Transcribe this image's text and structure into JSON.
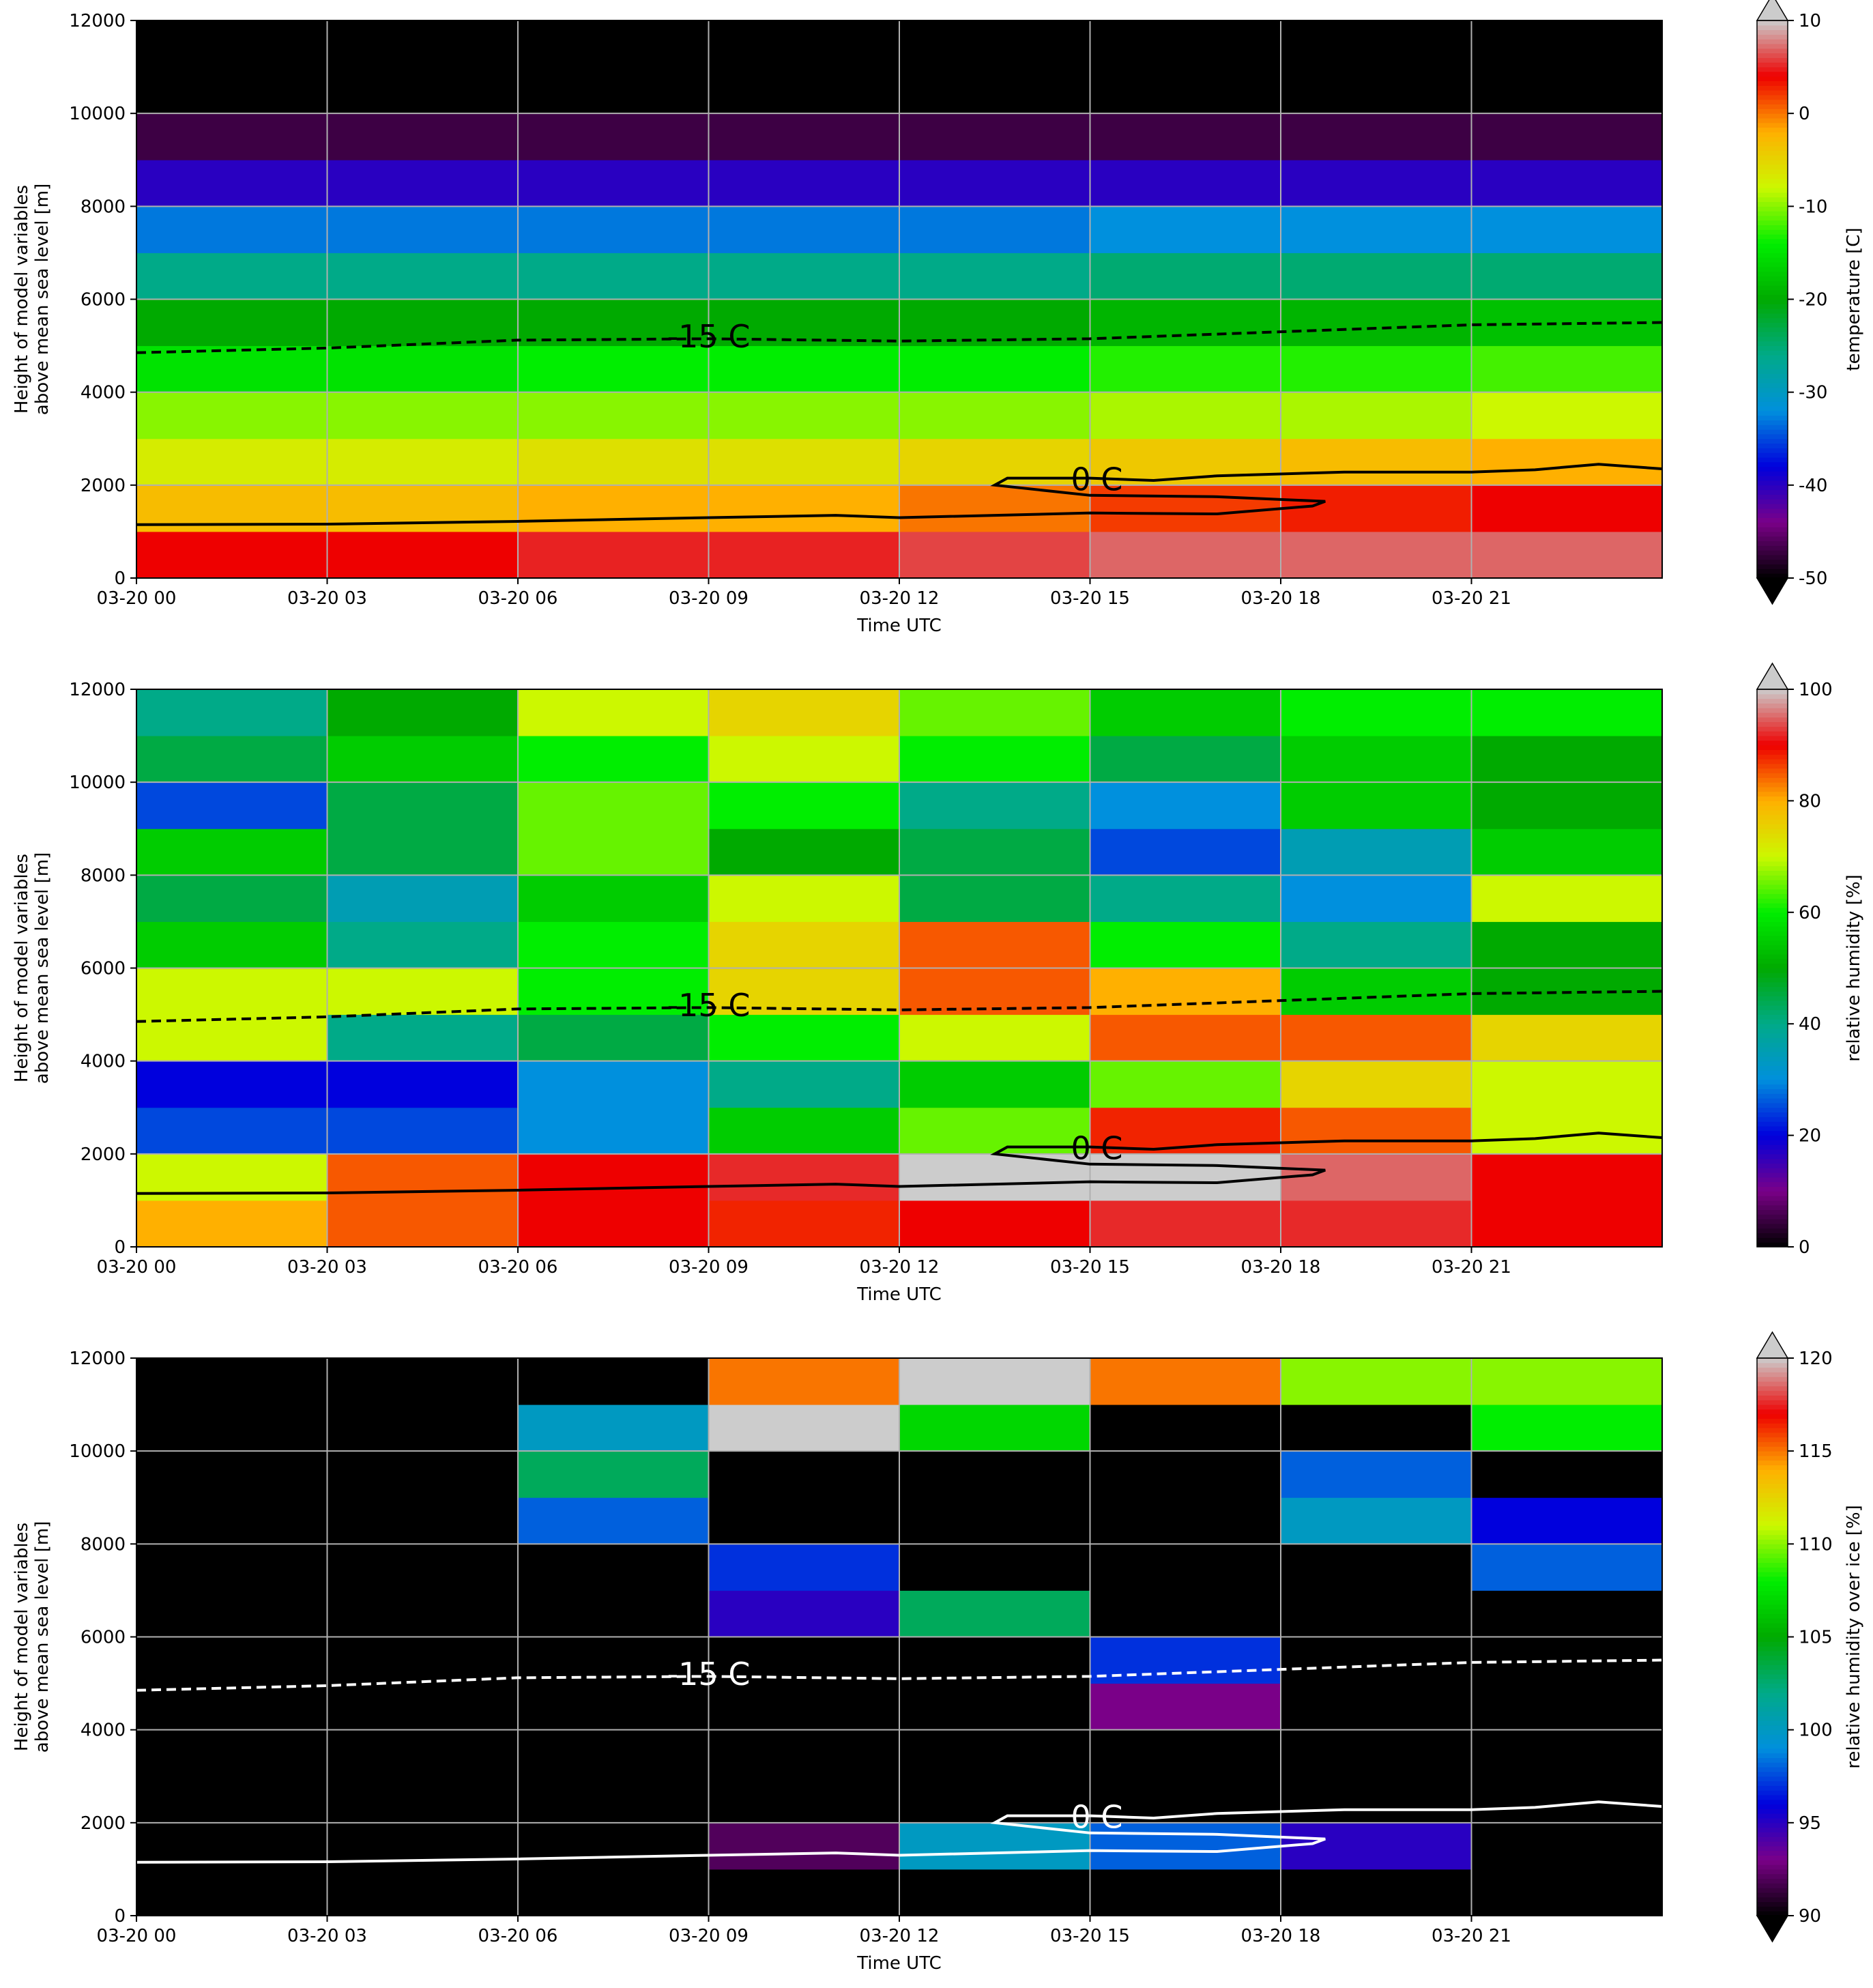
{
  "chart_data": [
    {
      "type": "heatmap",
      "xlabel": "Time UTC",
      "ylabel": [
        "Height of model variables",
        "above mean sea level [m]"
      ],
      "xlim": [
        0,
        24
      ],
      "ylim": [
        0,
        12000
      ],
      "xticks": [
        {
          "value": 0,
          "label": "03-20 00"
        },
        {
          "value": 3,
          "label": "03-20 03"
        },
        {
          "value": 6,
          "label": "03-20 06"
        },
        {
          "value": 9,
          "label": "03-20 09"
        },
        {
          "value": 12,
          "label": "03-20 12"
        },
        {
          "value": 15,
          "label": "03-20 15"
        },
        {
          "value": 18,
          "label": "03-20 18"
        },
        {
          "value": 21,
          "label": "03-20 21"
        }
      ],
      "yticks": [
        0,
        2000,
        4000,
        6000,
        8000,
        10000,
        12000
      ],
      "grid": true,
      "x_bins": [
        0,
        3,
        6,
        9,
        12,
        15,
        18,
        21,
        24
      ],
      "y_bins": [
        0,
        1000,
        2000,
        3000,
        4000,
        5000,
        6000,
        7000,
        8000,
        9000,
        10000,
        11000,
        12000
      ],
      "values": [
        [
          4,
          4,
          5,
          5,
          6,
          7,
          7,
          7
        ],
        [
          -3,
          -3,
          -2,
          -2,
          0,
          2,
          3,
          4
        ],
        [
          -7,
          -7,
          -6,
          -6,
          -5,
          -4,
          -3,
          -2
        ],
        [
          -10,
          -10,
          -10,
          -10,
          -10,
          -9,
          -9,
          -8
        ],
        [
          -15,
          -15,
          -14,
          -14,
          -14,
          -13,
          -13,
          -12
        ],
        [
          -20,
          -20,
          -20,
          -20,
          -20,
          -19,
          -19,
          -18
        ],
        [
          -26,
          -26,
          -26,
          -26,
          -26,
          -25,
          -25,
          -25
        ],
        [
          -33,
          -33,
          -33,
          -33,
          -33,
          -32,
          -32,
          -32
        ],
        [
          -40,
          -40,
          -40,
          -40,
          -40,
          -40,
          -40,
          -40
        ],
        [
          -47,
          -47,
          -47,
          -47,
          -47,
          -47,
          -47,
          -47
        ],
        [
          -55,
          -55,
          -55,
          -55,
          -55,
          -55,
          -55,
          -55
        ],
        [
          -56,
          -56,
          -56,
          -56,
          -56,
          -56,
          -56,
          -56
        ]
      ],
      "clim": [
        -50,
        10
      ],
      "cticks": [
        -50,
        -40,
        -30,
        -20,
        -10,
        0,
        10
      ],
      "clabel": "temperature [C]",
      "extend": "both",
      "colormap": [
        "#000000",
        "#7a0088",
        "#0000dd",
        "#0090dd",
        "#00aa88",
        "#00aa00",
        "#00ee00",
        "#ccf800",
        "#ffb000",
        "#ee0000",
        "#cccccc"
      ],
      "under": "#000000",
      "over": "#cccccc",
      "contours": [
        {
          "label": "-15 C",
          "color": "#000000",
          "style": "dashed",
          "x": [
            0,
            3,
            6,
            9,
            12,
            15,
            18,
            21,
            24
          ],
          "y": [
            4850,
            4950,
            5120,
            5150,
            5100,
            5150,
            5300,
            5450,
            5500
          ]
        },
        {
          "label": "0 C",
          "color": "#000000",
          "style": "solid",
          "x": [
            0,
            3,
            6,
            9,
            11,
            12,
            15,
            17,
            18.5,
            18.7,
            17,
            15,
            13.5,
            13.7,
            15,
            16,
            17,
            19,
            21,
            22,
            23,
            24
          ],
          "y": [
            1150,
            1160,
            1220,
            1300,
            1350,
            1300,
            1400,
            1380,
            1550,
            1650,
            1750,
            1780,
            2000,
            2150,
            2150,
            2100,
            2200,
            2280,
            2280,
            2330,
            2450,
            2350
          ]
        }
      ]
    },
    {
      "type": "heatmap",
      "xlabel": "Time UTC",
      "ylabel": [
        "Height of model variables",
        "above mean sea level [m]"
      ],
      "xlim": [
        0,
        24
      ],
      "ylim": [
        0,
        12000
      ],
      "xticks": [
        {
          "value": 0,
          "label": "03-20 00"
        },
        {
          "value": 3,
          "label": "03-20 03"
        },
        {
          "value": 6,
          "label": "03-20 06"
        },
        {
          "value": 9,
          "label": "03-20 09"
        },
        {
          "value": 12,
          "label": "03-20 12"
        },
        {
          "value": 15,
          "label": "03-20 15"
        },
        {
          "value": 18,
          "label": "03-20 18"
        },
        {
          "value": 21,
          "label": "03-20 21"
        }
      ],
      "yticks": [
        0,
        2000,
        4000,
        6000,
        8000,
        10000,
        12000
      ],
      "grid": true,
      "x_bins": [
        0,
        3,
        6,
        9,
        12,
        15,
        18,
        21,
        24
      ],
      "y_bins": [
        0,
        1000,
        2000,
        3000,
        4000,
        5000,
        6000,
        7000,
        8000,
        9000,
        10000,
        11000,
        12000
      ],
      "values": [
        [
          80,
          85,
          90,
          88,
          90,
          92,
          92,
          90
        ],
        [
          70,
          85,
          90,
          92,
          100,
          100,
          95,
          90
        ],
        [
          25,
          25,
          30,
          55,
          65,
          88,
          85,
          70
        ],
        [
          20,
          20,
          30,
          40,
          55,
          65,
          75,
          70
        ],
        [
          70,
          40,
          45,
          60,
          70,
          85,
          85,
          75
        ],
        [
          70,
          70,
          60,
          75,
          85,
          80,
          55,
          50
        ],
        [
          55,
          40,
          60,
          75,
          85,
          60,
          40,
          50
        ],
        [
          45,
          35,
          55,
          70,
          45,
          40,
          30,
          70
        ],
        [
          55,
          45,
          65,
          50,
          45,
          25,
          35,
          55
        ],
        [
          25,
          45,
          65,
          60,
          40,
          30,
          55,
          50
        ],
        [
          45,
          55,
          60,
          70,
          60,
          45,
          55,
          50
        ],
        [
          40,
          50,
          70,
          75,
          65,
          55,
          60,
          60
        ]
      ],
      "clim": [
        0,
        100
      ],
      "cticks": [
        0,
        20,
        40,
        60,
        80,
        100
      ],
      "clabel": "relative humidity [%]",
      "extend": "max",
      "colormap": [
        "#000000",
        "#7a0088",
        "#0000dd",
        "#0090dd",
        "#00aa88",
        "#00aa00",
        "#00ee00",
        "#ccf800",
        "#ffb000",
        "#ee0000",
        "#cccccc"
      ],
      "under": "#000000",
      "over": "#cccccc",
      "contours": [
        {
          "label": "-15 C",
          "color": "#000000",
          "style": "dashed",
          "x": [
            0,
            3,
            6,
            9,
            12,
            15,
            18,
            21,
            24
          ],
          "y": [
            4850,
            4950,
            5120,
            5150,
            5100,
            5150,
            5300,
            5450,
            5500
          ]
        },
        {
          "label": "0 C",
          "color": "#000000",
          "style": "solid",
          "x": [
            0,
            3,
            6,
            9,
            11,
            12,
            15,
            17,
            18.5,
            18.7,
            17,
            15,
            13.5,
            13.7,
            15,
            16,
            17,
            19,
            21,
            22,
            23,
            24
          ],
          "y": [
            1150,
            1160,
            1220,
            1300,
            1350,
            1300,
            1400,
            1380,
            1550,
            1650,
            1750,
            1780,
            2000,
            2150,
            2150,
            2100,
            2200,
            2280,
            2280,
            2330,
            2450,
            2350
          ]
        }
      ]
    },
    {
      "type": "heatmap",
      "xlabel": "Time UTC",
      "ylabel": [
        "Height of model variables",
        "above mean sea level [m]"
      ],
      "xlim": [
        0,
        24
      ],
      "ylim": [
        0,
        12000
      ],
      "xticks": [
        {
          "value": 0,
          "label": "03-20 00"
        },
        {
          "value": 3,
          "label": "03-20 03"
        },
        {
          "value": 6,
          "label": "03-20 06"
        },
        {
          "value": 9,
          "label": "03-20 09"
        },
        {
          "value": 12,
          "label": "03-20 12"
        },
        {
          "value": 15,
          "label": "03-20 15"
        },
        {
          "value": 18,
          "label": "03-20 18"
        },
        {
          "value": 21,
          "label": "03-20 21"
        }
      ],
      "yticks": [
        0,
        2000,
        4000,
        6000,
        8000,
        10000,
        12000
      ],
      "grid": true,
      "x_bins": [
        0,
        3,
        6,
        9,
        12,
        15,
        18,
        21,
        24
      ],
      "y_bins": [
        0,
        1000,
        2000,
        3000,
        4000,
        5000,
        6000,
        7000,
        8000,
        9000,
        10000,
        11000,
        12000
      ],
      "values": [
        [
          80,
          80,
          80,
          80,
          80,
          80,
          80,
          80
        ],
        [
          80,
          80,
          80,
          92,
          100,
          98,
          95,
          80
        ],
        [
          80,
          80,
          80,
          80,
          80,
          80,
          80,
          80
        ],
        [
          80,
          80,
          80,
          80,
          80,
          80,
          80,
          80
        ],
        [
          80,
          80,
          80,
          80,
          80,
          93,
          90,
          80
        ],
        [
          80,
          80,
          80,
          80,
          80,
          97,
          80,
          80
        ],
        [
          80,
          80,
          80,
          95,
          103,
          80,
          80,
          80
        ],
        [
          80,
          80,
          90,
          97,
          80,
          80,
          80,
          98
        ],
        [
          80,
          80,
          98,
          90,
          80,
          80,
          100,
          96
        ],
        [
          80,
          80,
          103,
          80,
          80,
          80,
          98,
          80
        ],
        [
          80,
          80,
          100,
          120,
          107,
          80,
          80,
          108
        ],
        [
          80,
          80,
          80,
          115,
          121,
          115,
          110,
          110
        ]
      ],
      "clim": [
        90,
        120
      ],
      "cticks": [
        90,
        95,
        100,
        105,
        110,
        115,
        120
      ],
      "clabel": "relative humidity over ice [%]",
      "extend": "both",
      "colormap": [
        "#000000",
        "#7a0088",
        "#0000dd",
        "#0090dd",
        "#00aa88",
        "#00aa00",
        "#00ee00",
        "#ccf800",
        "#ffb000",
        "#ee0000",
        "#cccccc"
      ],
      "under": "#000000",
      "over": "#cccccc",
      "contours": [
        {
          "label": "-15 C",
          "color": "#ffffff",
          "style": "dashed",
          "x": [
            0,
            3,
            6,
            9,
            12,
            15,
            18,
            21,
            24
          ],
          "y": [
            4850,
            4950,
            5120,
            5150,
            5100,
            5150,
            5300,
            5450,
            5500
          ]
        },
        {
          "label": "0 C",
          "color": "#ffffff",
          "style": "solid",
          "x": [
            0,
            3,
            6,
            9,
            11,
            12,
            15,
            17,
            18.5,
            18.7,
            17,
            15,
            13.5,
            13.7,
            15,
            16,
            17,
            19,
            21,
            22,
            23,
            24
          ],
          "y": [
            1150,
            1160,
            1220,
            1300,
            1350,
            1300,
            1400,
            1380,
            1550,
            1650,
            1750,
            1780,
            2000,
            2150,
            2150,
            2100,
            2200,
            2280,
            2280,
            2330,
            2450,
            2350
          ]
        }
      ]
    }
  ]
}
